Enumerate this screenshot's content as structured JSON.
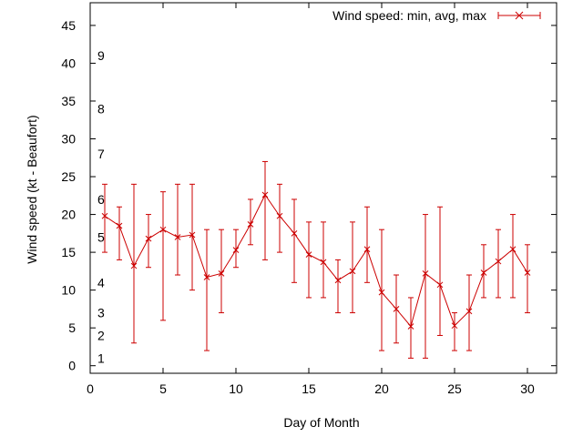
{
  "chart_data": {
    "type": "line",
    "title": "",
    "xlabel": "Day of Month",
    "ylabel": "Wind speed (kt - Beaufort)",
    "xlim": [
      0,
      32
    ],
    "ylim": [
      -1,
      48
    ],
    "x_ticks": [
      0,
      5,
      10,
      15,
      20,
      25,
      30
    ],
    "y_ticks": [
      0,
      5,
      10,
      15,
      20,
      25,
      30,
      35,
      40,
      45
    ],
    "grid": false,
    "legend_position": "top-right",
    "beaufort_labels": [
      {
        "label": "1",
        "y": 1
      },
      {
        "label": "2",
        "y": 4
      },
      {
        "label": "3",
        "y": 7
      },
      {
        "label": "4",
        "y": 11
      },
      {
        "label": "5",
        "y": 17
      },
      {
        "label": "6",
        "y": 22
      },
      {
        "label": "7",
        "y": 28
      },
      {
        "label": "8",
        "y": 34
      },
      {
        "label": "9",
        "y": 41
      }
    ],
    "series": [
      {
        "name": "Wind speed: min, avg, max",
        "color": "#cc0000",
        "x": [
          1,
          2,
          3,
          4,
          5,
          6,
          7,
          8,
          9,
          10,
          11,
          12,
          13,
          14,
          15,
          16,
          17,
          18,
          19,
          20,
          21,
          22,
          23,
          24,
          25,
          26,
          27,
          28,
          29,
          30
        ],
        "avg": [
          19.8,
          18.5,
          13.2,
          16.8,
          18.0,
          17.0,
          17.3,
          11.7,
          12.2,
          15.3,
          18.7,
          22.6,
          19.8,
          17.5,
          14.7,
          13.7,
          11.3,
          12.5,
          15.4,
          9.7,
          7.5,
          5.2,
          12.2,
          10.7,
          5.3,
          7.2,
          12.3,
          13.8,
          15.4,
          12.3
        ],
        "min": [
          15,
          14,
          3,
          13,
          6,
          12,
          10,
          2,
          7,
          13,
          16,
          14,
          15,
          11,
          9,
          9,
          7,
          7,
          11,
          2,
          3,
          1,
          1,
          4,
          2,
          2,
          9,
          9,
          9,
          7
        ],
        "max": [
          24,
          21,
          24,
          20,
          23,
          24,
          24,
          18,
          18,
          18,
          22,
          27,
          24,
          22,
          19,
          19,
          14,
          19,
          21,
          18,
          12,
          9,
          20,
          21,
          7,
          12,
          16,
          18,
          20,
          16
        ]
      }
    ]
  }
}
